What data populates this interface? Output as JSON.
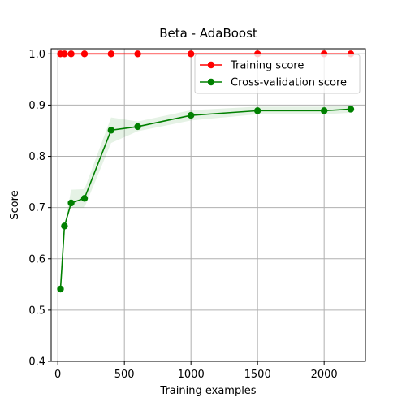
{
  "chart_data": {
    "type": "line",
    "title": "Beta - AdaBoost",
    "xlabel": "Training examples",
    "ylabel": "Score",
    "xlim": [
      -50,
      2310
    ],
    "ylim": [
      0.4,
      1.01
    ],
    "x_ticks": [
      0,
      500,
      1000,
      1500,
      2000
    ],
    "y_ticks": [
      0.4,
      0.5,
      0.6,
      0.7,
      0.8,
      0.9,
      1.0
    ],
    "x_tick_labels": [
      "0",
      "500",
      "1000",
      "1500",
      "2000"
    ],
    "y_tick_labels": [
      "0.4",
      "0.5",
      "0.6",
      "0.7",
      "0.8",
      "0.9",
      "1.0"
    ],
    "grid": true,
    "legend_position": "top-right",
    "x": [
      20,
      50,
      100,
      200,
      400,
      600,
      1000,
      1500,
      2000,
      2200
    ],
    "series": [
      {
        "name": "Training score",
        "color": "#ff0000",
        "values": [
          1.0,
          1.0,
          1.0,
          1.0,
          1.0,
          1.0,
          1.0,
          1.0,
          1.0,
          1.0
        ],
        "lower": [
          1.0,
          1.0,
          1.0,
          1.0,
          1.0,
          1.0,
          1.0,
          1.0,
          1.0,
          1.0
        ],
        "upper": [
          1.0,
          1.0,
          1.0,
          1.0,
          1.0,
          1.0,
          1.0,
          1.0,
          1.0,
          1.0
        ]
      },
      {
        "name": "Cross-validation score",
        "color": "#008000",
        "values": [
          0.541,
          0.664,
          0.709,
          0.718,
          0.851,
          0.858,
          0.88,
          0.889,
          0.889,
          0.892
        ],
        "lower": [
          0.541,
          0.664,
          0.7,
          0.7,
          0.826,
          0.849,
          0.87,
          0.882,
          0.882,
          0.885
        ],
        "upper": [
          0.541,
          0.664,
          0.735,
          0.736,
          0.876,
          0.868,
          0.89,
          0.897,
          0.897,
          0.9
        ]
      }
    ]
  }
}
